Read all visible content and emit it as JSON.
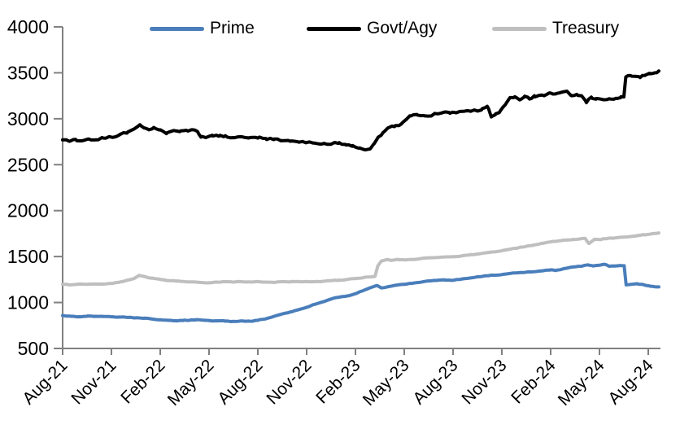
{
  "chart_data": {
    "type": "line",
    "title": "",
    "legend_position": "top",
    "grid": false,
    "axis_color": "#808080",
    "text_color": "#000000",
    "ylim": [
      500,
      4000
    ],
    "y_ticks": [
      500,
      1000,
      1500,
      2000,
      2500,
      3000,
      3500,
      4000
    ],
    "x_tick_labels": [
      "Aug-21",
      "Nov-21",
      "Feb-22",
      "May-22",
      "Aug-22",
      "Nov-22",
      "Feb-23",
      "May-23",
      "Aug-23",
      "Nov-23",
      "Feb-24",
      "May-24",
      "Aug-24"
    ],
    "months_per_tick": 3,
    "x_unit": "months since Aug-21",
    "series": [
      {
        "name": "Prime",
        "color": "#4a7ebb",
        "noise": 3,
        "points": [
          [
            0,
            858
          ],
          [
            0.5,
            850
          ],
          [
            1,
            846
          ],
          [
            1.5,
            850
          ],
          [
            2,
            850
          ],
          [
            2.5,
            847
          ],
          [
            3,
            845
          ],
          [
            3.5,
            842
          ],
          [
            4,
            838
          ],
          [
            4.5,
            833
          ],
          [
            5,
            828
          ],
          [
            5.5,
            820
          ],
          [
            6,
            812
          ],
          [
            6.5,
            806
          ],
          [
            7,
            801
          ],
          [
            7.4,
            804
          ],
          [
            7.8,
            807
          ],
          [
            8.2,
            814
          ],
          [
            8.6,
            808
          ],
          [
            9,
            805
          ],
          [
            9.5,
            800
          ],
          [
            10,
            797
          ],
          [
            10.5,
            795
          ],
          [
            11,
            800
          ],
          [
            11.5,
            797
          ],
          [
            12,
            806
          ],
          [
            12.5,
            822
          ],
          [
            13,
            850
          ],
          [
            13.5,
            876
          ],
          [
            14,
            898
          ],
          [
            14.5,
            922
          ],
          [
            15,
            948
          ],
          [
            15.5,
            980
          ],
          [
            16,
            1008
          ],
          [
            16.5,
            1038
          ],
          [
            17,
            1058
          ],
          [
            17.5,
            1072
          ],
          [
            18,
            1096
          ],
          [
            18.5,
            1132
          ],
          [
            18.9,
            1160
          ],
          [
            19.3,
            1185
          ],
          [
            19.6,
            1158
          ],
          [
            20,
            1172
          ],
          [
            20.5,
            1188
          ],
          [
            21,
            1198
          ],
          [
            21.5,
            1208
          ],
          [
            22,
            1220
          ],
          [
            22.5,
            1235
          ],
          [
            23,
            1240
          ],
          [
            23.5,
            1246
          ],
          [
            24,
            1242
          ],
          [
            24.5,
            1254
          ],
          [
            25,
            1266
          ],
          [
            25.5,
            1280
          ],
          [
            26,
            1290
          ],
          [
            26.5,
            1297
          ],
          [
            27,
            1304
          ],
          [
            27.5,
            1316
          ],
          [
            28,
            1324
          ],
          [
            28.5,
            1330
          ],
          [
            29,
            1335
          ],
          [
            29.5,
            1344
          ],
          [
            30,
            1356
          ],
          [
            30.3,
            1348
          ],
          [
            30.7,
            1362
          ],
          [
            31,
            1374
          ],
          [
            31.5,
            1388
          ],
          [
            32,
            1400
          ],
          [
            32.3,
            1410
          ],
          [
            32.6,
            1398
          ],
          [
            33,
            1406
          ],
          [
            33.3,
            1416
          ],
          [
            33.6,
            1394
          ],
          [
            34,
            1398
          ],
          [
            34.3,
            1403
          ],
          [
            34.52,
            1400
          ],
          [
            34.64,
            1192
          ],
          [
            35,
            1198
          ],
          [
            35.3,
            1204
          ],
          [
            35.7,
            1194
          ],
          [
            36.1,
            1178
          ],
          [
            36.4,
            1172
          ],
          [
            36.65,
            1170
          ]
        ]
      },
      {
        "name": "Govt/Agy",
        "color": "#000000",
        "noise": 10,
        "points": [
          [
            0,
            2770
          ],
          [
            0.4,
            2755
          ],
          [
            0.8,
            2775
          ],
          [
            1.2,
            2760
          ],
          [
            1.6,
            2780
          ],
          [
            2,
            2770
          ],
          [
            2.5,
            2790
          ],
          [
            3,
            2800
          ],
          [
            3.5,
            2825
          ],
          [
            4,
            2855
          ],
          [
            4.4,
            2890
          ],
          [
            4.75,
            2935
          ],
          [
            5,
            2900
          ],
          [
            5.3,
            2880
          ],
          [
            5.6,
            2905
          ],
          [
            6,
            2880
          ],
          [
            6.4,
            2845
          ],
          [
            6.8,
            2870
          ],
          [
            7.2,
            2860
          ],
          [
            7.6,
            2875
          ],
          [
            8,
            2880
          ],
          [
            8.3,
            2860
          ],
          [
            8.5,
            2800
          ],
          [
            8.8,
            2795
          ],
          [
            9.2,
            2820
          ],
          [
            9.6,
            2810
          ],
          [
            10,
            2815
          ],
          [
            10.5,
            2795
          ],
          [
            11,
            2805
          ],
          [
            11.5,
            2795
          ],
          [
            12,
            2790
          ],
          [
            12.5,
            2785
          ],
          [
            13,
            2780
          ],
          [
            13.5,
            2762
          ],
          [
            14,
            2755
          ],
          [
            14.5,
            2748
          ],
          [
            15,
            2742
          ],
          [
            15.5,
            2735
          ],
          [
            16,
            2728
          ],
          [
            16.5,
            2722
          ],
          [
            17,
            2740
          ],
          [
            17.4,
            2715
          ],
          [
            17.8,
            2700
          ],
          [
            18.2,
            2680
          ],
          [
            18.6,
            2662
          ],
          [
            18.9,
            2672
          ],
          [
            19.1,
            2720
          ],
          [
            19.4,
            2800
          ],
          [
            19.7,
            2850
          ],
          [
            20,
            2900
          ],
          [
            20.4,
            2915
          ],
          [
            20.8,
            2940
          ],
          [
            21.1,
            2990
          ],
          [
            21.4,
            3030
          ],
          [
            21.8,
            3040
          ],
          [
            22.2,
            3035
          ],
          [
            22.6,
            3030
          ],
          [
            23,
            3055
          ],
          [
            23.4,
            3070
          ],
          [
            23.8,
            3060
          ],
          [
            24.2,
            3065
          ],
          [
            24.6,
            3080
          ],
          [
            25,
            3085
          ],
          [
            25.4,
            3090
          ],
          [
            25.8,
            3110
          ],
          [
            26.1,
            3135
          ],
          [
            26.35,
            3020
          ],
          [
            26.6,
            3045
          ],
          [
            26.9,
            3085
          ],
          [
            27.2,
            3150
          ],
          [
            27.5,
            3230
          ],
          [
            27.8,
            3240
          ],
          [
            28.1,
            3205
          ],
          [
            28.4,
            3245
          ],
          [
            28.7,
            3215
          ],
          [
            29,
            3250
          ],
          [
            29.3,
            3255
          ],
          [
            29.6,
            3250
          ],
          [
            30,
            3280
          ],
          [
            30.3,
            3270
          ],
          [
            30.6,
            3285
          ],
          [
            31,
            3300
          ],
          [
            31.3,
            3250
          ],
          [
            31.6,
            3265
          ],
          [
            31.9,
            3250
          ],
          [
            32.2,
            3175
          ],
          [
            32.5,
            3235
          ],
          [
            32.8,
            3220
          ],
          [
            33.2,
            3210
          ],
          [
            33.6,
            3218
          ],
          [
            34,
            3222
          ],
          [
            34.3,
            3230
          ],
          [
            34.5,
            3238
          ],
          [
            34.62,
            3455
          ],
          [
            34.9,
            3470
          ],
          [
            35.2,
            3462
          ],
          [
            35.5,
            3448
          ],
          [
            35.8,
            3472
          ],
          [
            36.1,
            3490
          ],
          [
            36.4,
            3500
          ],
          [
            36.65,
            3520
          ]
        ]
      },
      {
        "name": "Treasury",
        "color": "#bfbfbf",
        "noise": 3,
        "points": [
          [
            0,
            1198
          ],
          [
            0.5,
            1193
          ],
          [
            1,
            1200
          ],
          [
            1.5,
            1197
          ],
          [
            2,
            1202
          ],
          [
            2.5,
            1200
          ],
          [
            3,
            1208
          ],
          [
            3.5,
            1220
          ],
          [
            4,
            1244
          ],
          [
            4.4,
            1262
          ],
          [
            4.7,
            1296
          ],
          [
            5,
            1284
          ],
          [
            5.4,
            1266
          ],
          [
            5.8,
            1258
          ],
          [
            6.2,
            1248
          ],
          [
            6.6,
            1238
          ],
          [
            7,
            1232
          ],
          [
            7.5,
            1227
          ],
          [
            8,
            1225
          ],
          [
            8.5,
            1218
          ],
          [
            9,
            1215
          ],
          [
            9.5,
            1221
          ],
          [
            10,
            1227
          ],
          [
            10.5,
            1222
          ],
          [
            11,
            1227
          ],
          [
            11.5,
            1223
          ],
          [
            12,
            1228
          ],
          [
            12.5,
            1222
          ],
          [
            13,
            1218
          ],
          [
            13.5,
            1227
          ],
          [
            14,
            1224
          ],
          [
            14.5,
            1229
          ],
          [
            15,
            1229
          ],
          [
            15.5,
            1227
          ],
          [
            16,
            1231
          ],
          [
            16.5,
            1237
          ],
          [
            17,
            1244
          ],
          [
            17.5,
            1251
          ],
          [
            18,
            1260
          ],
          [
            18.5,
            1273
          ],
          [
            19,
            1280
          ],
          [
            19.2,
            1284
          ],
          [
            19.38,
            1400
          ],
          [
            19.6,
            1452
          ],
          [
            19.9,
            1468
          ],
          [
            20.2,
            1458
          ],
          [
            20.6,
            1470
          ],
          [
            21,
            1464
          ],
          [
            21.5,
            1469
          ],
          [
            22,
            1477
          ],
          [
            22.5,
            1487
          ],
          [
            23,
            1491
          ],
          [
            23.5,
            1494
          ],
          [
            24,
            1498
          ],
          [
            24.5,
            1507
          ],
          [
            25,
            1517
          ],
          [
            25.5,
            1529
          ],
          [
            26,
            1541
          ],
          [
            26.5,
            1551
          ],
          [
            27,
            1564
          ],
          [
            27.5,
            1580
          ],
          [
            28,
            1596
          ],
          [
            28.5,
            1611
          ],
          [
            29,
            1626
          ],
          [
            29.5,
            1643
          ],
          [
            30,
            1660
          ],
          [
            30.5,
            1671
          ],
          [
            31,
            1679
          ],
          [
            31.4,
            1687
          ],
          [
            31.8,
            1692
          ],
          [
            32.1,
            1699
          ],
          [
            32.35,
            1642
          ],
          [
            32.7,
            1688
          ],
          [
            33.1,
            1686
          ],
          [
            33.5,
            1698
          ],
          [
            34,
            1704
          ],
          [
            34.5,
            1711
          ],
          [
            35,
            1721
          ],
          [
            35.5,
            1731
          ],
          [
            36,
            1741
          ],
          [
            36.3,
            1750
          ],
          [
            36.65,
            1757
          ]
        ]
      }
    ]
  },
  "legend": {
    "items": [
      {
        "label": "Prime",
        "color": "#4a7ebb"
      },
      {
        "label": "Govt/Agy",
        "color": "#000000"
      },
      {
        "label": "Treasury",
        "color": "#bfbfbf"
      }
    ]
  }
}
